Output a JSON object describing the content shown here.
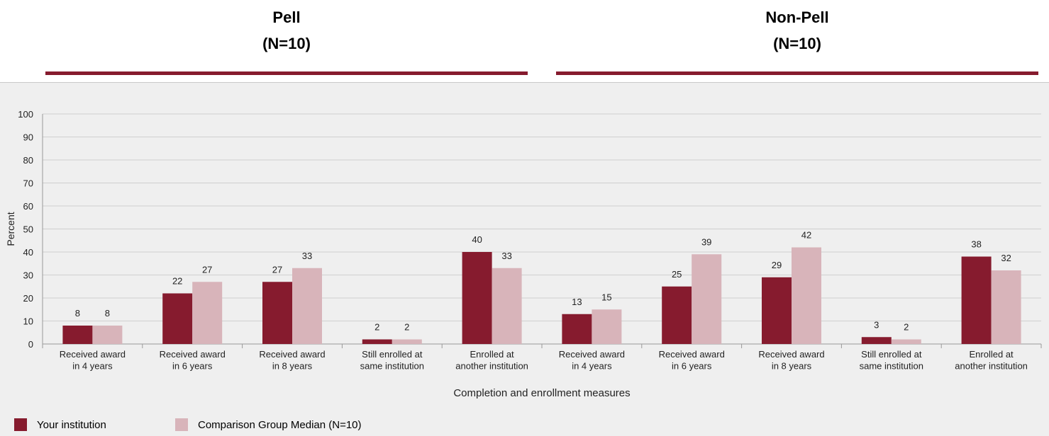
{
  "groups": [
    {
      "title": "Pell",
      "n": "(N=10)"
    },
    {
      "title": "Non-Pell",
      "n": "(N=10)"
    }
  ],
  "colors": {
    "institution": "#861b2e",
    "comparison": "#d8b4ba",
    "rule": "#861b2e"
  },
  "chart_data": {
    "type": "bar",
    "xlabel": "Completion and enrollment measures",
    "ylabel": "Percent",
    "ylim": [
      0,
      100
    ],
    "yticks": [
      0,
      10,
      20,
      30,
      40,
      50,
      60,
      70,
      80,
      90,
      100
    ],
    "categories": [
      [
        "Received award",
        "in 4 years"
      ],
      [
        "Received award",
        "in 6 years"
      ],
      [
        "Received award",
        "in 8 years"
      ],
      [
        "Still enrolled at",
        "same institution"
      ],
      [
        "Enrolled at",
        "another institution"
      ],
      [
        "Received award",
        "in 4 years"
      ],
      [
        "Received award",
        "in 6 years"
      ],
      [
        "Received award",
        "in 8 years"
      ],
      [
        "Still enrolled at",
        "same institution"
      ],
      [
        "Enrolled at",
        "another institution"
      ]
    ],
    "series": [
      {
        "name": "Your institution",
        "color": "#861b2e",
        "values": [
          8,
          22,
          27,
          2,
          40,
          13,
          25,
          29,
          3,
          38
        ]
      },
      {
        "name": "Comparison Group Median (N=10)",
        "color": "#d8b4ba",
        "values": [
          8,
          27,
          33,
          2,
          33,
          15,
          39,
          42,
          2,
          32
        ]
      }
    ],
    "legend_position": "bottom-left"
  }
}
